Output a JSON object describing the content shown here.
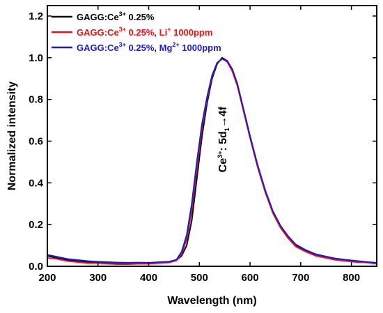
{
  "chart_data": {
    "type": "line",
    "xlabel": "Wavelength (nm)",
    "ylabel": "Normalized intensity",
    "xlim": [
      200,
      850
    ],
    "ylim": [
      0,
      1.25
    ],
    "xticks": [
      200,
      300,
      400,
      500,
      600,
      700,
      800
    ],
    "yticks": [
      0.0,
      0.2,
      0.4,
      0.6,
      0.8,
      1.0,
      1.2
    ],
    "xtick_labels": [
      "200",
      "300",
      "400",
      "500",
      "600",
      "700",
      "800"
    ],
    "ytick_labels": [
      "0.0",
      "0.2",
      "0.4",
      "0.6",
      "0.8",
      "1.0",
      "1.2"
    ],
    "grid": false,
    "legend_position": "top-left",
    "annotation": {
      "base": "Ce",
      "sup": "3+",
      "mid": ": 5d",
      "sub": "1",
      "end": "→4f",
      "x": 553,
      "y": 0.45
    },
    "series": [
      {
        "name_parts": {
          "a": "GAGG:Ce",
          "sup1": "3+",
          "b": " 0.25%",
          "c": "",
          "sup2": "",
          "d": ""
        },
        "color": "#000000",
        "points": [
          [
            200,
            0.05
          ],
          [
            220,
            0.04
          ],
          [
            240,
            0.03
          ],
          [
            260,
            0.025
          ],
          [
            280,
            0.02
          ],
          [
            300,
            0.02
          ],
          [
            320,
            0.018
          ],
          [
            340,
            0.015
          ],
          [
            360,
            0.015
          ],
          [
            380,
            0.016
          ],
          [
            400,
            0.015
          ],
          [
            420,
            0.018
          ],
          [
            440,
            0.02
          ],
          [
            455,
            0.03
          ],
          [
            465,
            0.05
          ],
          [
            475,
            0.1
          ],
          [
            485,
            0.22
          ],
          [
            495,
            0.42
          ],
          [
            505,
            0.62
          ],
          [
            515,
            0.78
          ],
          [
            525,
            0.9
          ],
          [
            535,
            0.97
          ],
          [
            545,
            1.0
          ],
          [
            555,
            0.985
          ],
          [
            565,
            0.94
          ],
          [
            575,
            0.87
          ],
          [
            585,
            0.77
          ],
          [
            600,
            0.62
          ],
          [
            615,
            0.48
          ],
          [
            630,
            0.36
          ],
          [
            645,
            0.26
          ],
          [
            660,
            0.19
          ],
          [
            675,
            0.14
          ],
          [
            690,
            0.1
          ],
          [
            710,
            0.075
          ],
          [
            730,
            0.055
          ],
          [
            750,
            0.045
          ],
          [
            770,
            0.035
          ],
          [
            790,
            0.03
          ],
          [
            810,
            0.025
          ],
          [
            830,
            0.02
          ],
          [
            850,
            0.015
          ]
        ]
      },
      {
        "name_parts": {
          "a": "GAGG:Ce",
          "sup1": "3+",
          "b": " 0.25%, Li",
          "c": "",
          "sup2": "+",
          "d": " 1000ppm"
        },
        "color": "#e8141b",
        "points": [
          [
            200,
            0.04
          ],
          [
            220,
            0.035
          ],
          [
            240,
            0.025
          ],
          [
            260,
            0.02
          ],
          [
            280,
            0.015
          ],
          [
            300,
            0.015
          ],
          [
            320,
            0.012
          ],
          [
            340,
            0.01
          ],
          [
            360,
            0.01
          ],
          [
            380,
            0.012
          ],
          [
            400,
            0.012
          ],
          [
            420,
            0.015
          ],
          [
            440,
            0.018
          ],
          [
            455,
            0.028
          ],
          [
            465,
            0.06
          ],
          [
            475,
            0.13
          ],
          [
            485,
            0.27
          ],
          [
            495,
            0.47
          ],
          [
            505,
            0.66
          ],
          [
            515,
            0.8
          ],
          [
            525,
            0.91
          ],
          [
            535,
            0.975
          ],
          [
            545,
            0.995
          ],
          [
            555,
            0.98
          ],
          [
            565,
            0.935
          ],
          [
            575,
            0.865
          ],
          [
            585,
            0.765
          ],
          [
            600,
            0.615
          ],
          [
            615,
            0.475
          ],
          [
            630,
            0.355
          ],
          [
            645,
            0.255
          ],
          [
            660,
            0.185
          ],
          [
            675,
            0.135
          ],
          [
            690,
            0.095
          ],
          [
            710,
            0.07
          ],
          [
            730,
            0.05
          ],
          [
            750,
            0.04
          ],
          [
            770,
            0.03
          ],
          [
            790,
            0.025
          ],
          [
            810,
            0.02
          ],
          [
            830,
            0.018
          ],
          [
            850,
            0.012
          ]
        ]
      },
      {
        "name_parts": {
          "a": "GAGG:Ce",
          "sup1": "3+",
          "b": " 0.25%, Mg",
          "c": "",
          "sup2": "2+",
          "d": " 1000ppm"
        },
        "color": "#1c1cc8",
        "points": [
          [
            200,
            0.055
          ],
          [
            220,
            0.045
          ],
          [
            240,
            0.035
          ],
          [
            260,
            0.03
          ],
          [
            280,
            0.025
          ],
          [
            300,
            0.022
          ],
          [
            320,
            0.02
          ],
          [
            340,
            0.018
          ],
          [
            360,
            0.017
          ],
          [
            380,
            0.018
          ],
          [
            400,
            0.017
          ],
          [
            420,
            0.02
          ],
          [
            440,
            0.022
          ],
          [
            455,
            0.032
          ],
          [
            465,
            0.07
          ],
          [
            475,
            0.15
          ],
          [
            485,
            0.3
          ],
          [
            495,
            0.5
          ],
          [
            505,
            0.68
          ],
          [
            515,
            0.81
          ],
          [
            525,
            0.915
          ],
          [
            535,
            0.975
          ],
          [
            545,
            0.995
          ],
          [
            555,
            0.985
          ],
          [
            565,
            0.945
          ],
          [
            575,
            0.875
          ],
          [
            585,
            0.775
          ],
          [
            600,
            0.625
          ],
          [
            615,
            0.485
          ],
          [
            630,
            0.365
          ],
          [
            645,
            0.265
          ],
          [
            660,
            0.195
          ],
          [
            675,
            0.145
          ],
          [
            690,
            0.105
          ],
          [
            710,
            0.078
          ],
          [
            730,
            0.058
          ],
          [
            750,
            0.047
          ],
          [
            770,
            0.037
          ],
          [
            790,
            0.031
          ],
          [
            810,
            0.026
          ],
          [
            830,
            0.021
          ],
          [
            850,
            0.017
          ]
        ]
      }
    ]
  }
}
